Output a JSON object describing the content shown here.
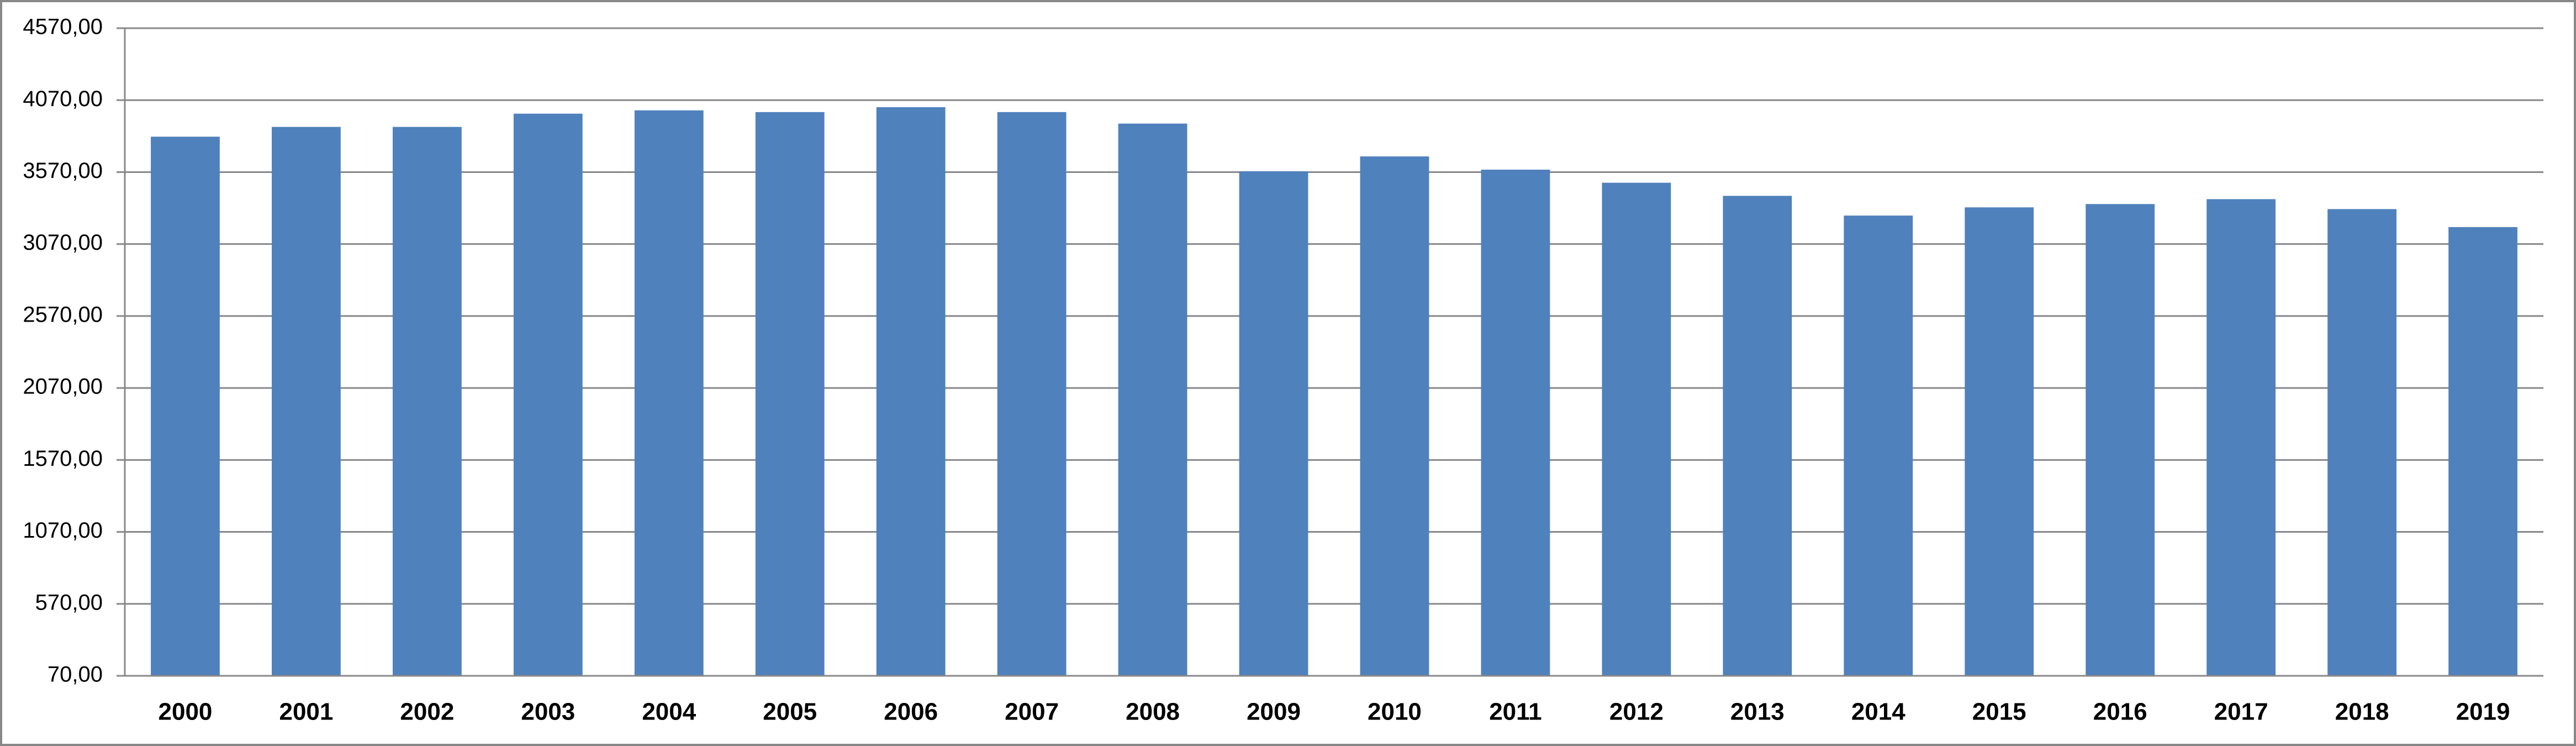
{
  "chart_data": {
    "type": "bar",
    "categories": [
      "2000",
      "2001",
      "2002",
      "2003",
      "2004",
      "2005",
      "2006",
      "2007",
      "2008",
      "2009",
      "2010",
      "2011",
      "2012",
      "2013",
      "2014",
      "2015",
      "2016",
      "2017",
      "2018",
      "2019"
    ],
    "values": [
      3816,
      3884,
      3884,
      3976,
      3999,
      3987,
      4021,
      3987,
      3907,
      3576,
      3679,
      3587,
      3496,
      3405,
      3268,
      3325,
      3348,
      3382,
      3313,
      3188
    ],
    "color": "#4f81bd",
    "ylim": [
      70,
      4570
    ],
    "yticks": [
      {
        "value": 70,
        "label": "70,00"
      },
      {
        "value": 570,
        "label": "570,00"
      },
      {
        "value": 1070,
        "label": "1070,00"
      },
      {
        "value": 1570,
        "label": "1570,00"
      },
      {
        "value": 2070,
        "label": "2070,00"
      },
      {
        "value": 2570,
        "label": "2570,00"
      },
      {
        "value": 3070,
        "label": "3070,00"
      },
      {
        "value": 3570,
        "label": "3570,00"
      },
      {
        "value": 4070,
        "label": "4070,00"
      },
      {
        "value": 4570,
        "label": "4570,00"
      }
    ],
    "grid": true
  }
}
